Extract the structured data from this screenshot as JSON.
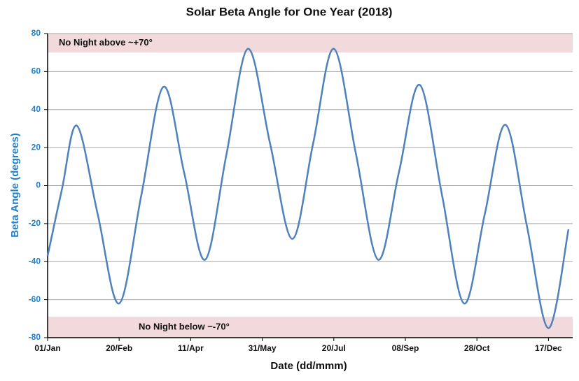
{
  "chart_data": {
    "type": "line",
    "title": "Solar Beta Angle for One Year (2018)",
    "x_label": "Date (dd/mmm)",
    "y_label": "Beta Angle (degrees)",
    "x": [
      0,
      10,
      20.5,
      35,
      50,
      65.5,
      81,
      95.5,
      110,
      125,
      140,
      155.5,
      171,
      185.5,
      200,
      215.5,
      231,
      245.5,
      260,
      275.5,
      291,
      305.5,
      320,
      335,
      350,
      364
    ],
    "values": [
      -37,
      -2,
      31.5,
      -15,
      -62,
      -5,
      52,
      6.5,
      -39,
      16.5,
      72,
      22,
      -28,
      22,
      72,
      16.5,
      -39,
      7,
      53,
      -4.5,
      -62,
      -15,
      32,
      -21.5,
      -75,
      -23
    ],
    "color": "#4f81bd",
    "xlim": [
      0,
      364
    ],
    "xticks": [
      {
        "value": 0,
        "label": "01/Jan"
      },
      {
        "value": 50,
        "label": "20/Feb"
      },
      {
        "value": 100,
        "label": "11/Apr"
      },
      {
        "value": 150,
        "label": "31/May"
      },
      {
        "value": 200,
        "label": "20/Jul"
      },
      {
        "value": 250,
        "label": "08/Sep"
      },
      {
        "value": 300,
        "label": "28/Oct"
      },
      {
        "value": 350,
        "label": "17/Dec"
      }
    ],
    "ylim": [
      -80,
      80
    ],
    "yticks": [
      -80,
      -60,
      -40,
      -20,
      0,
      20,
      40,
      60,
      80
    ],
    "grid": true,
    "bands": [
      {
        "from": 70,
        "to": 80,
        "label": "No Night above ~+70°",
        "color": "#f2d9db"
      },
      {
        "from": -80,
        "to": -69,
        "label": "No Night below ~-70°",
        "color": "#f2d9db"
      }
    ]
  }
}
